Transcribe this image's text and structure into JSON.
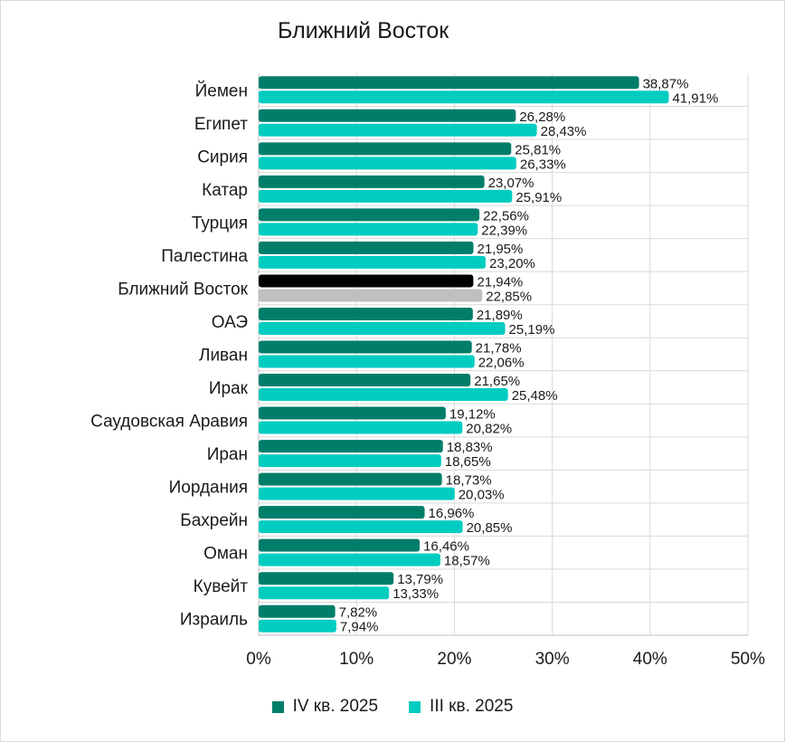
{
  "chart_data": {
    "type": "bar",
    "orientation": "horizontal",
    "title": "Ближний Восток",
    "categories": [
      "Йемен",
      "Египет",
      "Сирия",
      "Катар",
      "Турция",
      "Палестина",
      "Ближний Восток",
      "ОАЭ",
      "Ливан",
      "Ирак",
      "Саудовская Аравия",
      "Иран",
      "Иордания",
      "Бахрейн",
      "Оман",
      "Кувейт",
      "Израиль"
    ],
    "series": [
      {
        "name": "IV кв. 2025",
        "color": "#007e6a",
        "values": [
          38.87,
          26.28,
          25.81,
          23.07,
          22.56,
          21.95,
          21.94,
          21.89,
          21.78,
          21.65,
          19.12,
          18.83,
          18.73,
          16.96,
          16.46,
          13.79,
          7.82
        ],
        "labels": [
          "38,87%",
          "26,28%",
          "25,81%",
          "23,07%",
          "22,56%",
          "21,95%",
          "21,94%",
          "21,89%",
          "21,78%",
          "21,65%",
          "19,12%",
          "18,83%",
          "18,73%",
          "16,96%",
          "16,46%",
          "13,79%",
          "7,82%"
        ]
      },
      {
        "name": "III кв. 2025",
        "color": "#00ccc0",
        "values": [
          41.91,
          28.43,
          26.33,
          25.91,
          22.39,
          23.2,
          22.85,
          25.19,
          22.06,
          25.48,
          20.82,
          18.65,
          20.03,
          20.85,
          18.57,
          13.33,
          7.94
        ],
        "labels": [
          "41,91%",
          "28,43%",
          "26,33%",
          "25,91%",
          "22,39%",
          "23,20%",
          "22,85%",
          "25,19%",
          "22,06%",
          "25,48%",
          "20,82%",
          "18,65%",
          "20,03%",
          "20,85%",
          "18,57%",
          "13,33%",
          "7,94%"
        ]
      }
    ],
    "highlight": {
      "category": "Ближний Восток",
      "colors": [
        "#000000",
        "#bfbfbf"
      ]
    },
    "xlim": [
      0,
      50
    ],
    "xticks": [
      0,
      10,
      20,
      30,
      40,
      50
    ],
    "xtick_labels": [
      "0%",
      "10%",
      "20%",
      "30%",
      "40%",
      "50%"
    ],
    "grid": true,
    "legend_position": "bottom"
  }
}
